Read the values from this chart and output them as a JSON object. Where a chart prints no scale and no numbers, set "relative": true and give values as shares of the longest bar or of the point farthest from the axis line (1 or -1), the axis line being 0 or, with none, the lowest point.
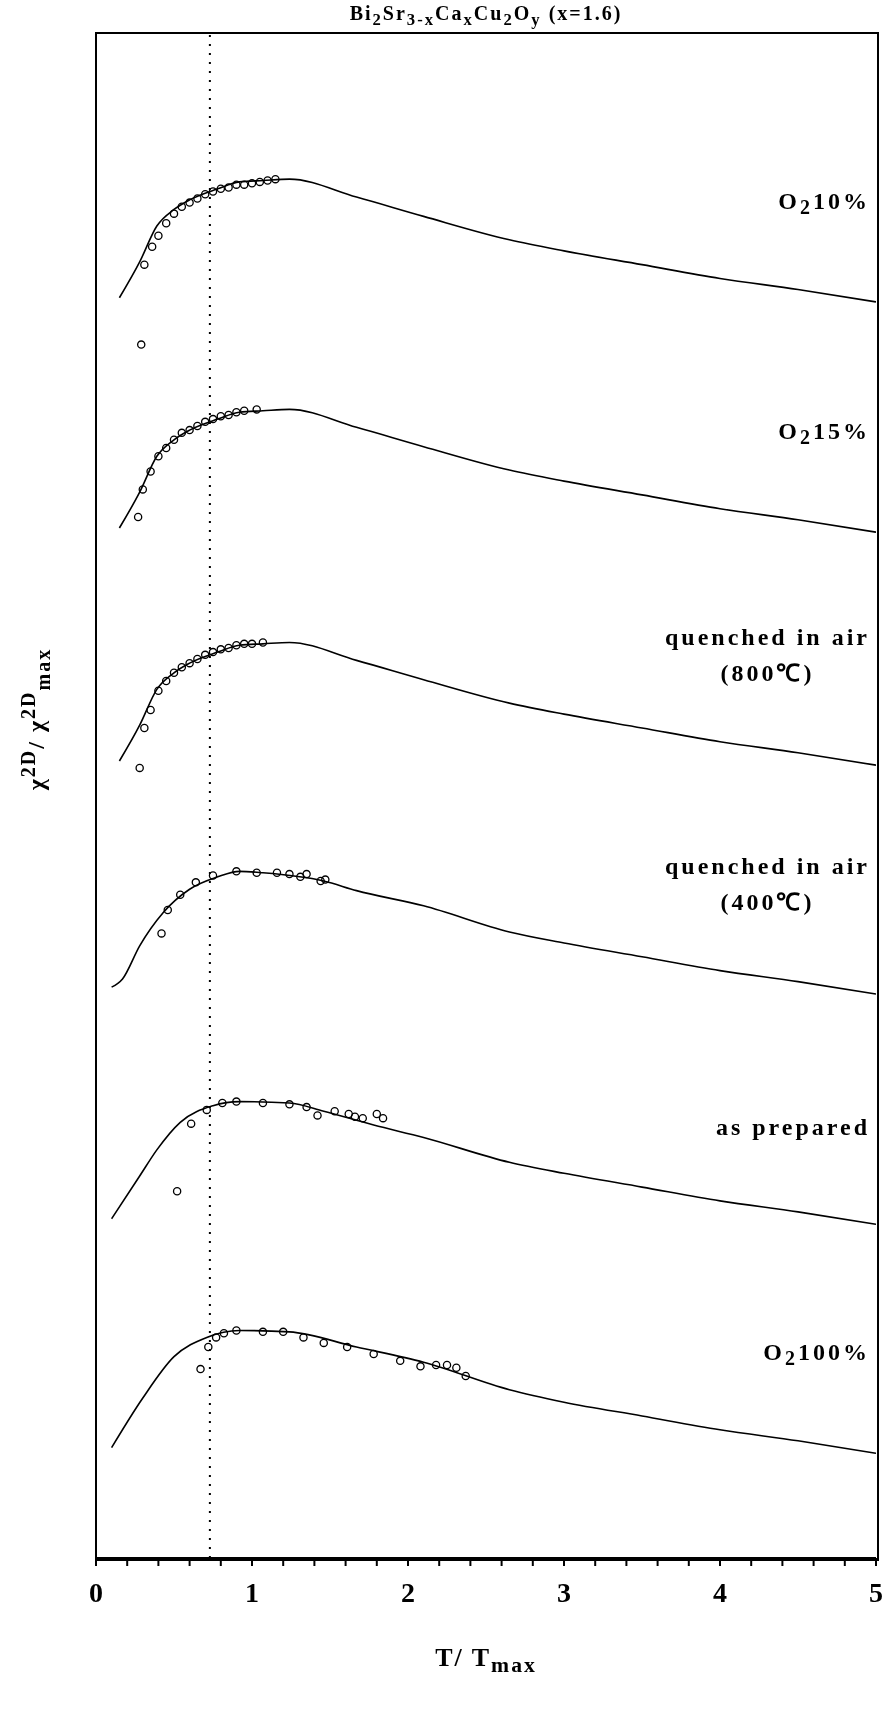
{
  "chart_data": {
    "type": "line",
    "title": "Bi$_{2}$Sr$_{3-x}$Ca$_{x}$Cu$_{2}$O$_{y}$  (x=1.6)",
    "xlabel": "T/ T$_{max}$",
    "ylabel": "χ$^{2D}$/ χ$^{2D}$$_{max}$",
    "relative": true,
    "xlim": [
      0,
      5
    ],
    "xticks": [
      0,
      {
        "value": 0.2,
        "label": null
      },
      {
        "value": 0.4,
        "label": null
      },
      {
        "value": 0.6,
        "label": null
      },
      {
        "value": 0.8,
        "label": null
      },
      1,
      {
        "value": 1.2,
        "label": null
      },
      {
        "value": 1.4,
        "label": null
      },
      {
        "value": 1.6,
        "label": null
      },
      {
        "value": 1.8,
        "label": null
      },
      2,
      {
        "value": 2.2,
        "label": null
      },
      {
        "value": 2.4,
        "label": null
      },
      {
        "value": 2.6,
        "label": null
      },
      {
        "value": 2.8,
        "label": null
      },
      3,
      {
        "value": 3.2,
        "label": null
      },
      {
        "value": 3.4,
        "label": null
      },
      {
        "value": 3.6,
        "label": null
      },
      {
        "value": 3.8,
        "label": null
      },
      4,
      {
        "value": 4.2,
        "label": null
      },
      {
        "value": 4.4,
        "label": null
      },
      {
        "value": 4.6,
        "label": null
      },
      {
        "value": 4.8,
        "label": null
      },
      5
    ],
    "ref_lines": [
      {
        "axis": "x",
        "value": 0.73,
        "line_style": "dotted",
        "color": "#000000"
      }
    ],
    "series": [
      {
        "type": "line",
        "name": "O$_{2}$10%",
        "color": "#000000",
        "marker": "none",
        "x": [
          0.15,
          0.28,
          0.39,
          0.5,
          0.6,
          0.78,
          0.92,
          1.07,
          1.24,
          1.67,
          2.1,
          2.65,
          3,
          3.5,
          4,
          4.5,
          5
        ],
        "values": [
          0.914,
          0.94,
          0.966,
          0.978,
          0.985,
          0.993,
          0.998,
          0.999,
          1.0,
          0.987,
          0.973,
          0.956,
          0.948,
          0.938,
          0.928,
          0.92,
          0.911
        ]
      },
      {
        "type": "scatter",
        "color": "#000000",
        "marker": "circle",
        "x": [
          0.29,
          0.31,
          0.36,
          0.4,
          0.45,
          0.5,
          0.55,
          0.6,
          0.65,
          0.7,
          0.75,
          0.8,
          0.85,
          0.9,
          0.95,
          1.0,
          1.05,
          1.1,
          1.15
        ],
        "values": [
          0.88,
          0.938,
          0.951,
          0.959,
          0.968,
          0.975,
          0.98,
          0.983,
          0.986,
          0.989,
          0.991,
          0.993,
          0.994,
          0.996,
          0.996,
          0.997,
          0.998,
          0.999,
          1.0
        ]
      },
      {
        "type": "line",
        "name": "O$_{2}$15%",
        "color": "#000000",
        "marker": "none",
        "x": [
          0.15,
          0.28,
          0.39,
          0.5,
          0.6,
          0.78,
          0.92,
          1.07,
          1.24,
          1.67,
          2.1,
          2.65,
          3,
          3.5,
          4,
          4.5,
          5
        ],
        "values": [
          0.747,
          0.773,
          0.799,
          0.811,
          0.818,
          0.826,
          0.831,
          0.832,
          0.833,
          0.82,
          0.806,
          0.789,
          0.781,
          0.771,
          0.761,
          0.753,
          0.744
        ]
      },
      {
        "type": "scatter",
        "color": "#000000",
        "marker": "circle",
        "x": [
          0.27,
          0.3,
          0.35,
          0.4,
          0.45,
          0.5,
          0.55,
          0.6,
          0.65,
          0.7,
          0.75,
          0.8,
          0.85,
          0.9,
          0.95,
          1.03
        ],
        "values": [
          0.755,
          0.775,
          0.788,
          0.799,
          0.805,
          0.811,
          0.816,
          0.818,
          0.821,
          0.824,
          0.826,
          0.828,
          0.829,
          0.831,
          0.832,
          0.833
        ]
      },
      {
        "type": "line",
        "name": "quenched in air\n(800℃)",
        "color": "#000000",
        "marker": "none",
        "x": [
          0.15,
          0.28,
          0.39,
          0.5,
          0.6,
          0.78,
          0.92,
          1.07,
          1.24,
          1.67,
          2.1,
          2.65,
          3,
          3.5,
          4,
          4.5,
          5
        ],
        "values": [
          0.578,
          0.604,
          0.63,
          0.642,
          0.649,
          0.657,
          0.662,
          0.663,
          0.664,
          0.651,
          0.637,
          0.62,
          0.612,
          0.602,
          0.592,
          0.584,
          0.575
        ]
      },
      {
        "type": "scatter",
        "color": "#000000",
        "marker": "circle",
        "x": [
          0.28,
          0.31,
          0.35,
          0.4,
          0.45,
          0.5,
          0.55,
          0.6,
          0.65,
          0.7,
          0.75,
          0.8,
          0.85,
          0.9,
          0.95,
          1.0,
          1.07
        ],
        "values": [
          0.573,
          0.602,
          0.615,
          0.629,
          0.636,
          0.642,
          0.646,
          0.649,
          0.652,
          0.655,
          0.657,
          0.659,
          0.66,
          0.662,
          0.663,
          0.663,
          0.664
        ]
      },
      {
        "type": "line",
        "name": "quenched in air\n(400℃)",
        "color": "#000000",
        "marker": "none",
        "x": [
          0.1,
          0.17,
          0.28,
          0.43,
          0.6,
          0.78,
          0.92,
          1.07,
          1.46,
          1.67,
          2.1,
          2.65,
          3,
          3.5,
          4,
          4.5,
          5
        ],
        "values": [
          0.414,
          0.42,
          0.444,
          0.468,
          0.485,
          0.494,
          0.498,
          0.497,
          0.491,
          0.484,
          0.473,
          0.454,
          0.446,
          0.436,
          0.426,
          0.418,
          0.409
        ]
      },
      {
        "type": "scatter",
        "color": "#000000",
        "marker": "circle",
        "x": [
          0.42,
          0.46,
          0.54,
          0.64,
          0.75,
          0.9,
          1.03,
          1.16,
          1.24,
          1.31,
          1.35,
          1.44,
          1.47
        ],
        "values": [
          0.453,
          0.47,
          0.481,
          0.49,
          0.495,
          0.498,
          0.497,
          0.497,
          0.496,
          0.494,
          0.496,
          0.491,
          0.492
        ]
      },
      {
        "type": "line",
        "name": "as prepared",
        "color": "#000000",
        "marker": "none",
        "x": [
          0.1,
          0.28,
          0.39,
          0.54,
          0.75,
          0.92,
          1.24,
          1.46,
          1.78,
          2.1,
          2.65,
          3,
          3.5,
          4,
          4.5,
          5
        ],
        "values": [
          0.246,
          0.277,
          0.296,
          0.316,
          0.328,
          0.331,
          0.33,
          0.324,
          0.314,
          0.305,
          0.287,
          0.279,
          0.269,
          0.259,
          0.251,
          0.242
        ]
      },
      {
        "type": "scatter",
        "color": "#000000",
        "marker": "circle",
        "x": [
          0.52,
          0.61,
          0.71,
          0.81,
          0.9,
          1.07,
          1.24,
          1.35,
          1.42,
          1.53,
          1.62,
          1.66,
          1.71,
          1.8,
          1.84
        ],
        "values": [
          0.266,
          0.315,
          0.325,
          0.33,
          0.331,
          0.33,
          0.329,
          0.327,
          0.321,
          0.324,
          0.322,
          0.32,
          0.319,
          0.322,
          0.319
        ]
      },
      {
        "type": "line",
        "name": "O$_{2}$100%",
        "color": "#000000",
        "marker": "none",
        "x": [
          0.1,
          0.3,
          0.5,
          0.71,
          0.92,
          1.24,
          1.67,
          2.1,
          2.65,
          3,
          3.5,
          4,
          4.5,
          5
        ],
        "values": [
          0.08,
          0.116,
          0.146,
          0.16,
          0.165,
          0.164,
          0.153,
          0.142,
          0.122,
          0.113,
          0.103,
          0.093,
          0.085,
          0.076
        ]
      },
      {
        "type": "scatter",
        "color": "#000000",
        "marker": "circle",
        "x": [
          0.67,
          0.72,
          0.77,
          0.82,
          0.9,
          1.07,
          1.2,
          1.33,
          1.46,
          1.61,
          1.78,
          1.95,
          2.08,
          2.18,
          2.25,
          2.31,
          2.37
        ],
        "values": [
          0.137,
          0.153,
          0.16,
          0.163,
          0.165,
          0.164,
          0.164,
          0.16,
          0.156,
          0.153,
          0.148,
          0.143,
          0.139,
          0.14,
          0.14,
          0.138,
          0.132
        ]
      }
    ]
  }
}
